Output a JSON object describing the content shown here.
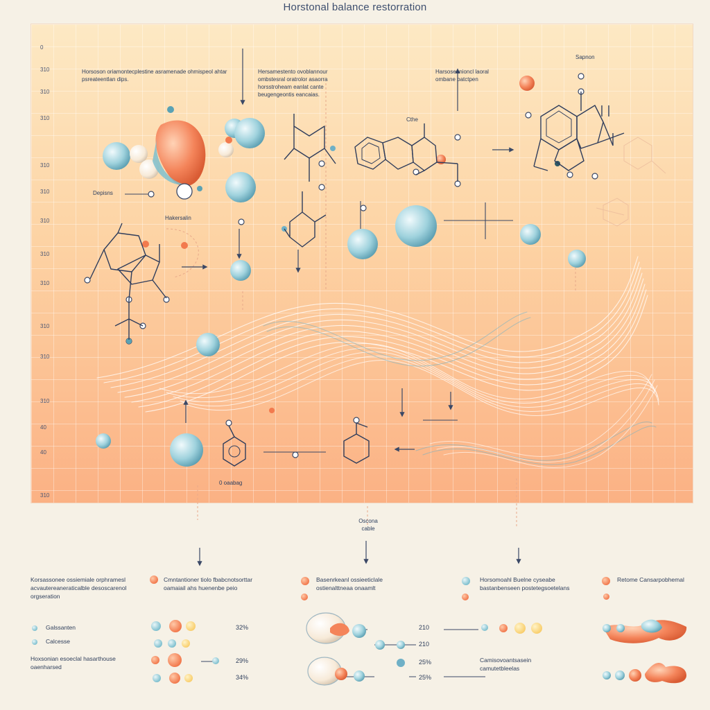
{
  "title": "Horstonal balance restorration",
  "y_axis_labels": [
    "0",
    "310",
    "310",
    "310",
    "310",
    "310",
    "310",
    "310",
    "310",
    "310",
    "310",
    "310",
    "40",
    "40",
    "310"
  ],
  "notes": {
    "n1": "Horsoson oriamontecplestine asramenade ohmispeol ahtar psreateentlan dips.",
    "n2": "Hersamestento ovoblannour ombstesral oratrolor asaorra horsstroheam eanlat cante beugengeontis eancaias.",
    "n3": "Harsoseanioncl laoral ombane batctpen",
    "sapnon": "Sapnon",
    "dapiera": "Depisns",
    "hakerselin": "Hakersalin",
    "ethe": "Cthe",
    "cabatag": "0 oaabag",
    "osocna": "Oscona\ncable"
  },
  "legend": {
    "col1_title": "Korsassonee ossiemiale orphramesl acvautereaneraticalble desoscarenol orgseration",
    "col1_items": [
      {
        "label": "Galssanten"
      },
      {
        "label": "Calcesse"
      }
    ],
    "col1_title2": "Hoxsonian esoeclal hasarthouse oaenharsed",
    "col2_title": "Cmntantioner tiolo fbabcnotsorttar oamaiail ahs huenenbe peio",
    "col3_title": "Basenrkeanl ossieeticlale ostienalttneaa onaamlt",
    "col4_title": "Horsomoahl Buelne cyseabe bastanbenseen postetegsoetelans",
    "col4_title2": "Camisovoantsasein camutetbleelas",
    "col5_title": "Retome Cansarpobhemal",
    "pcts": [
      "32%",
      "29%",
      "34%",
      "210",
      "210",
      "25%",
      "25%"
    ]
  },
  "colors": {
    "blue": "#7fc0cf",
    "orange": "#f27a4e",
    "yellow": "#f9cf6e",
    "ink": "#2c3e5e"
  }
}
